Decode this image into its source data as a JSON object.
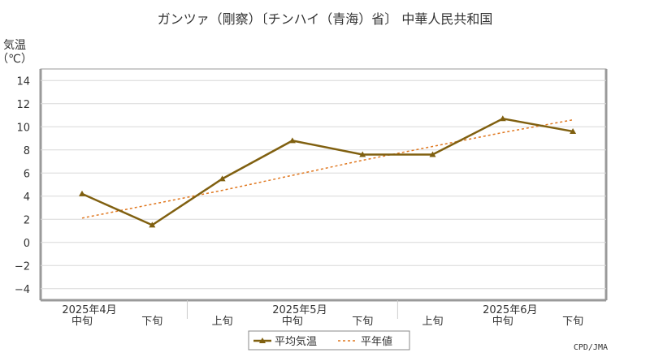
{
  "chart_data": {
    "type": "line",
    "title": "ガンツァ（剛察）〔チンハイ（青海）省〕 中華人民共和国",
    "ylabel_line1": "気温",
    "ylabel_line2": "（℃）",
    "ylim": [
      -5,
      15
    ],
    "yticks": [
      "14",
      "12",
      "10",
      "8",
      "6",
      "4",
      "2",
      "0",
      "−2",
      "−4"
    ],
    "ytick_values": [
      14,
      12,
      10,
      8,
      6,
      4,
      2,
      0,
      -2,
      -4
    ],
    "categories": [
      "中旬",
      "下旬",
      "上旬",
      "中旬",
      "下旬",
      "上旬",
      "中旬",
      "下旬"
    ],
    "months": [
      {
        "label": "2025年4月",
        "center_index": 0
      },
      {
        "label": "2025年5月",
        "center_index": 3
      },
      {
        "label": "2025年6月",
        "center_index": 6
      }
    ],
    "series": [
      {
        "name": "平均気温",
        "values": [
          4.2,
          1.5,
          5.5,
          8.8,
          7.6,
          7.6,
          10.7,
          9.6
        ],
        "color": "#806010",
        "marker": "triangle"
      },
      {
        "name": "平年値",
        "values": [
          2.1,
          3.3,
          4.5,
          5.8,
          7.1,
          8.3,
          9.5,
          10.6
        ],
        "color": "#e07820",
        "style": "dashed"
      }
    ],
    "grid": true,
    "legend_position": "bottom-center",
    "credit": "CPD/JMA"
  }
}
